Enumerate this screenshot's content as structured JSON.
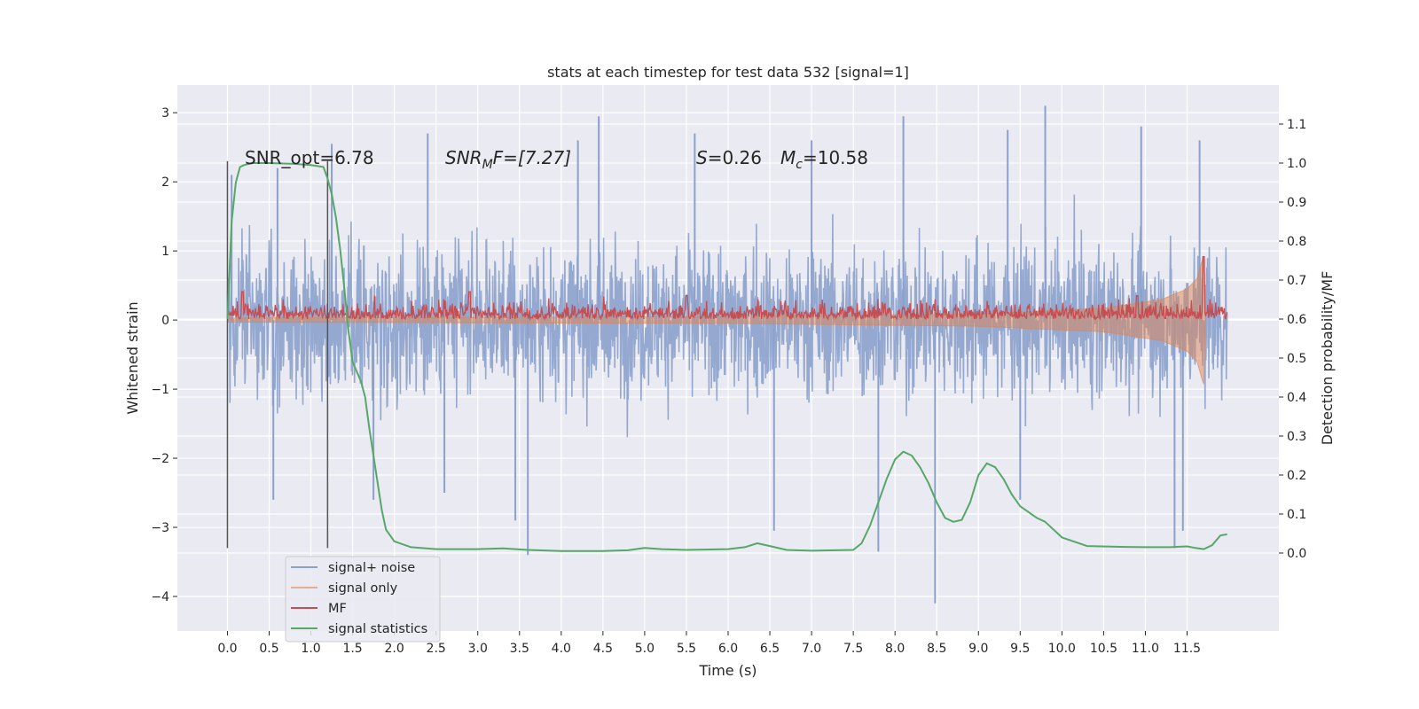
{
  "chart_data": {
    "type": "line",
    "title": "stats at each timestep for test data 532 [signal=1]",
    "xlabel": "Time (s)",
    "ylabel": "Whitened strain",
    "ylabel_right": "Detection probability/MF",
    "xlim": [
      -0.6,
      12.6
    ],
    "ylim": [
      -4.5,
      3.4
    ],
    "ylim_right": [
      -0.2,
      1.2
    ],
    "xticks": [
      0.0,
      0.5,
      1.0,
      1.5,
      2.0,
      2.5,
      3.0,
      3.5,
      4.0,
      4.5,
      5.0,
      5.5,
      6.0,
      6.5,
      7.0,
      7.5,
      8.0,
      8.5,
      9.0,
      9.5,
      10.0,
      10.5,
      11.0,
      11.5
    ],
    "xtick_labels": [
      "0.0",
      "0.5",
      "1.0",
      "1.5",
      "2.0",
      "2.5",
      "3.0",
      "3.5",
      "4.0",
      "4.5",
      "5.0",
      "5.5",
      "6.0",
      "6.5",
      "7.0",
      "7.5",
      "8.0",
      "8.5",
      "9.0",
      "9.5",
      "10.0",
      "10.5",
      "11.0",
      "11.5"
    ],
    "yticks": [
      -4,
      -3,
      -2,
      -1,
      0,
      1,
      2,
      3
    ],
    "ytick_labels": [
      "−4",
      "−3",
      "−2",
      "−1",
      "0",
      "1",
      "2",
      "3"
    ],
    "yticks_right": [
      0.0,
      0.1,
      0.2,
      0.3,
      0.4,
      0.5,
      0.6,
      0.7,
      0.8,
      0.9,
      1.0,
      1.1
    ],
    "ytick_labels_right": [
      "0.0",
      "0.1",
      "0.2",
      "0.3",
      "0.4",
      "0.5",
      "0.6",
      "0.7",
      "0.8",
      "0.9",
      "1.0",
      "1.1"
    ],
    "grid": true,
    "legend_position": "lower-left",
    "annotations": {
      "snr_opt": "SNR_opt=6.78",
      "snr_mf_main": "SNR",
      "snr_mf_sub": "M",
      "snr_mf_rest": "F=[7.27]",
      "s_main": "S",
      "s_rest": "=0.26",
      "mc_main": "M",
      "mc_sub": "c",
      "mc_rest": "=10.58"
    },
    "vlines": [
      {
        "x": 0.0,
        "ymin": -3.3,
        "ymax": 2.3
      },
      {
        "x": 1.2,
        "ymin": -3.3,
        "ymax": 2.3
      }
    ],
    "series": [
      {
        "name": "signal+ noise",
        "color": "#8ba1cc",
        "style": "noise",
        "x_range": [
          0.0,
          11.98
        ],
        "envelope_typical": 1.6,
        "spikes": [
          {
            "x": 0.05,
            "y": 2.1
          },
          {
            "x": 0.55,
            "y": -2.6
          },
          {
            "x": 0.6,
            "y": 2.2
          },
          {
            "x": 1.25,
            "y": 2.55
          },
          {
            "x": 1.75,
            "y": -2.6
          },
          {
            "x": 2.4,
            "y": 2.7
          },
          {
            "x": 2.6,
            "y": -2.5
          },
          {
            "x": 3.45,
            "y": -2.9
          },
          {
            "x": 3.6,
            "y": -3.4
          },
          {
            "x": 4.2,
            "y": 2.6
          },
          {
            "x": 4.45,
            "y": 2.95
          },
          {
            "x": 5.6,
            "y": 2.7
          },
          {
            "x": 6.55,
            "y": -3.05
          },
          {
            "x": 7.0,
            "y": 2.6
          },
          {
            "x": 7.8,
            "y": -3.35
          },
          {
            "x": 8.1,
            "y": 2.95
          },
          {
            "x": 8.48,
            "y": -4.1
          },
          {
            "x": 9.35,
            "y": 2.75
          },
          {
            "x": 9.5,
            "y": -2.6
          },
          {
            "x": 9.8,
            "y": 3.1
          },
          {
            "x": 10.95,
            "y": 2.8
          },
          {
            "x": 11.35,
            "y": -3.3
          },
          {
            "x": 11.45,
            "y": -3.05
          },
          {
            "x": 11.65,
            "y": 2.6
          }
        ]
      },
      {
        "name": "signal only",
        "color": "#dd8452",
        "style": "chirp",
        "x_range": [
          0.0,
          11.72
        ],
        "amplitude_points": [
          [
            0.0,
            0.03
          ],
          [
            6.0,
            0.05
          ],
          [
            9.0,
            0.09
          ],
          [
            10.5,
            0.17
          ],
          [
            11.2,
            0.3
          ],
          [
            11.5,
            0.45
          ],
          [
            11.62,
            0.6
          ],
          [
            11.7,
            0.95
          ],
          [
            11.72,
            0.0
          ]
        ]
      },
      {
        "name": "MF",
        "color": "#c44e52",
        "style": "mf",
        "x_range": [
          0.0,
          11.98
        ],
        "baseline_right": 0.6,
        "typical_right": 0.63,
        "peaks_right": [
          {
            "x": 0.18,
            "y": 0.67
          },
          {
            "x": 2.9,
            "y": 0.67
          },
          {
            "x": 5.5,
            "y": 0.66
          },
          {
            "x": 10.9,
            "y": 0.66
          },
          {
            "x": 11.7,
            "y": 0.76
          }
        ]
      },
      {
        "name": "signal statistics",
        "color": "#55a868",
        "style": "line",
        "x": [
          0.0,
          0.05,
          0.1,
          0.15,
          0.2,
          0.3,
          0.5,
          0.8,
          1.0,
          1.15,
          1.2,
          1.25,
          1.3,
          1.35,
          1.4,
          1.45,
          1.5,
          1.6,
          1.65,
          1.7,
          1.75,
          1.8,
          1.85,
          1.9,
          2.0,
          2.2,
          2.5,
          3.0,
          3.3,
          3.6,
          4.0,
          4.5,
          4.8,
          5.0,
          5.2,
          5.5,
          6.0,
          6.2,
          6.35,
          6.5,
          6.7,
          7.0,
          7.5,
          7.6,
          7.7,
          7.8,
          7.9,
          8.0,
          8.1,
          8.2,
          8.3,
          8.4,
          8.5,
          8.6,
          8.7,
          8.8,
          8.9,
          9.0,
          9.1,
          9.2,
          9.3,
          9.4,
          9.5,
          9.7,
          9.8,
          10.0,
          10.3,
          10.7,
          11.0,
          11.3,
          11.5,
          11.6,
          11.7,
          11.8,
          11.9,
          11.98
        ],
        "y_right": [
          0.6,
          0.85,
          0.95,
          0.99,
          0.995,
          1.0,
          1.0,
          0.998,
          0.995,
          0.99,
          0.96,
          0.92,
          0.86,
          0.78,
          0.68,
          0.57,
          0.49,
          0.44,
          0.4,
          0.32,
          0.25,
          0.18,
          0.11,
          0.06,
          0.03,
          0.015,
          0.01,
          0.01,
          0.012,
          0.008,
          0.005,
          0.005,
          0.007,
          0.013,
          0.01,
          0.008,
          0.01,
          0.015,
          0.025,
          0.018,
          0.008,
          0.006,
          0.008,
          0.025,
          0.07,
          0.13,
          0.19,
          0.24,
          0.26,
          0.25,
          0.22,
          0.18,
          0.13,
          0.09,
          0.08,
          0.085,
          0.13,
          0.2,
          0.23,
          0.22,
          0.19,
          0.15,
          0.12,
          0.09,
          0.08,
          0.04,
          0.018,
          0.016,
          0.015,
          0.015,
          0.017,
          0.013,
          0.01,
          0.02,
          0.045,
          0.048
        ]
      }
    ]
  }
}
